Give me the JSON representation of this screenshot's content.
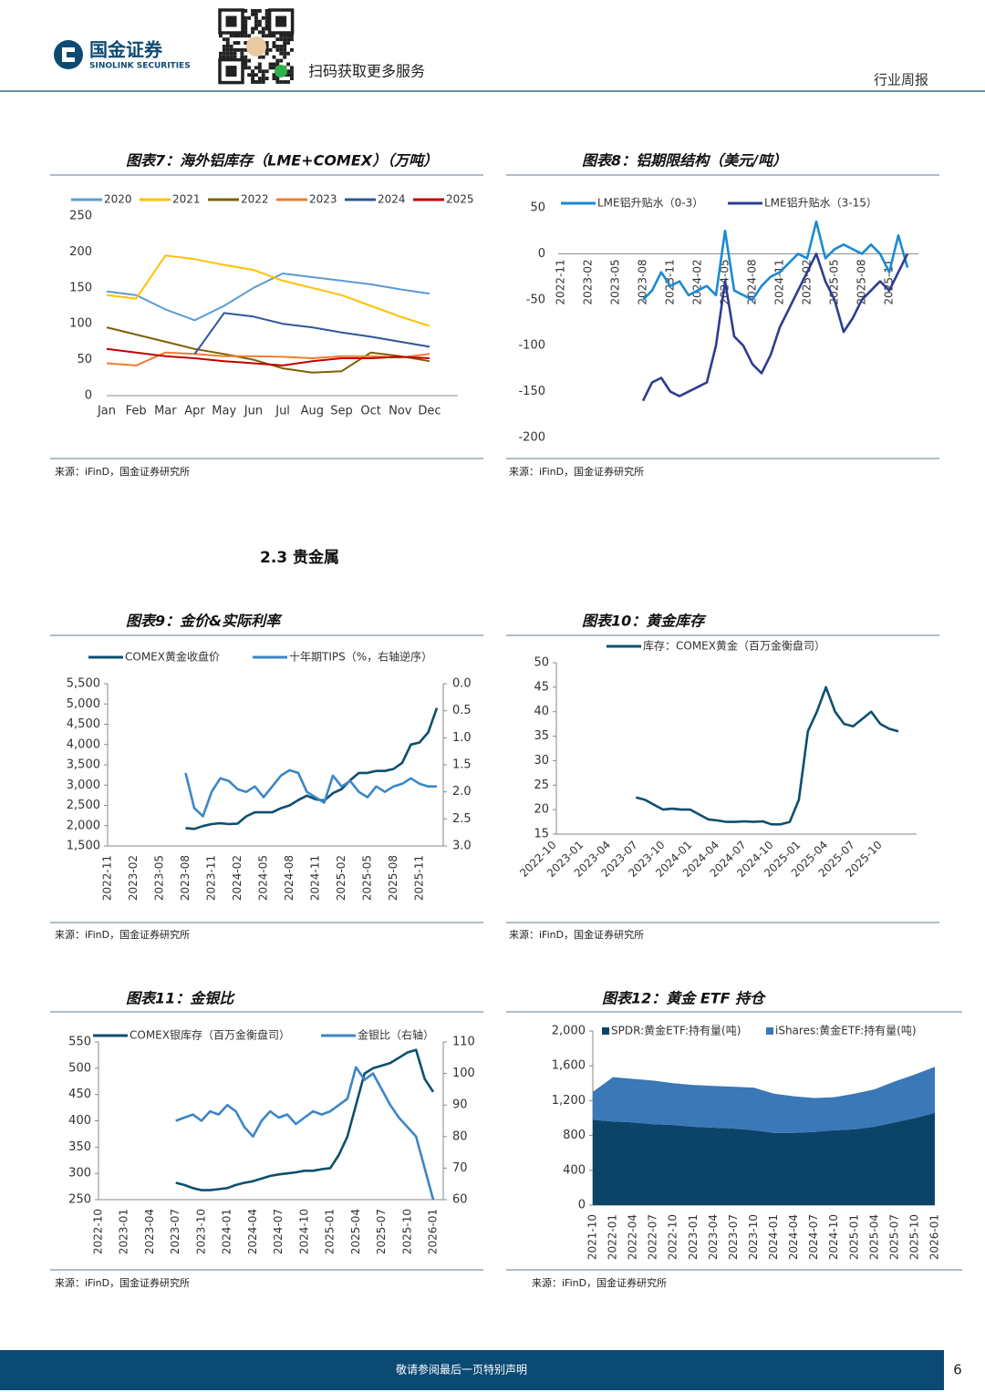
{
  "header": {
    "brand": "国金证券",
    "brand_en": "SINOLINK SECURITIES",
    "qr_caption": "扫码获取更多服务",
    "report_type": "行业周报"
  },
  "section": "2.3 贵金属",
  "footer": {
    "disclaimer": "敬请参阅最后一页特别声明",
    "page": 6
  },
  "chart_data": [
    {
      "type": "line",
      "title": "图表7：海外铝库存（LME+COMEX）（万吨）",
      "source": "来源：iFinD，国金证券研究所",
      "legend": "top",
      "categories": [
        "Jan",
        "Feb",
        "Mar",
        "Apr",
        "May",
        "Jun",
        "Jul",
        "Aug",
        "Sep",
        "Oct",
        "Nov",
        "Dec"
      ],
      "ylim": [
        0,
        250
      ],
      "yticks": [
        0,
        50,
        100,
        150,
        200,
        250
      ],
      "series": [
        {
          "name": "2020",
          "color": "#5b9bd5",
          "values": [
            145,
            140,
            120,
            105,
            125,
            150,
            170,
            165,
            160,
            155,
            148,
            142
          ]
        },
        {
          "name": "2021",
          "color": "#ffc000",
          "values": [
            140,
            135,
            195,
            190,
            182,
            175,
            160,
            150,
            140,
            125,
            110,
            97
          ]
        },
        {
          "name": "2022",
          "color": "#7f6000",
          "values": [
            95,
            85,
            75,
            65,
            58,
            50,
            38,
            32,
            34,
            60,
            55,
            48
          ]
        },
        {
          "name": "2023",
          "color": "#ed7d31",
          "values": [
            45,
            42,
            60,
            58,
            55,
            55,
            54,
            52,
            55,
            55,
            53,
            58
          ]
        },
        {
          "name": "2024",
          "color": "#2f5597",
          "values": [
            null,
            null,
            null,
            58,
            115,
            110,
            100,
            95,
            88,
            82,
            75,
            68
          ]
        },
        {
          "name": "2025",
          "color": "#c00000",
          "values": [
            65,
            60,
            55,
            52,
            48,
            45,
            42,
            48,
            52,
            52,
            54,
            52
          ]
        }
      ]
    },
    {
      "type": "line",
      "title": "图表8：铝期限结构（美元/吨）",
      "source": "来源：iFinD，国金证券研究所",
      "legend": "top",
      "categories": [
        "2022-11",
        null,
        null,
        "2023-02",
        null,
        null,
        "2023-05",
        null,
        null,
        "2023-08",
        null,
        null,
        "2023-11",
        null,
        null,
        "2024-02",
        null,
        null,
        "2024-05",
        null,
        null,
        "2024-08",
        null,
        null,
        "2024-11",
        null,
        null,
        "2025-02",
        null,
        null,
        "2025-05",
        null,
        null,
        "2025-08",
        null,
        null,
        "2025-11",
        null,
        null
      ],
      "ylim": [
        -200,
        50
      ],
      "yticks": [
        -200,
        -150,
        -100,
        -50,
        0,
        50
      ],
      "series": [
        {
          "name": "LME铝升贴水（0-3）",
          "color": "#1a8ad4",
          "values": [
            null,
            null,
            null,
            null,
            null,
            null,
            null,
            null,
            null,
            -50,
            -40,
            -20,
            -35,
            -30,
            -45,
            -40,
            -35,
            -45,
            25,
            -40,
            -45,
            -50,
            -35,
            -25,
            -20,
            -10,
            0,
            -5,
            35,
            -5,
            5,
            10,
            5,
            0,
            10,
            0,
            -20,
            20,
            -15
          ]
        },
        {
          "name": "LME铝升贴水（3-15）",
          "color": "#2e3d8f",
          "values": [
            null,
            null,
            null,
            null,
            null,
            null,
            null,
            null,
            null,
            -160,
            -140,
            -135,
            -150,
            -155,
            -150,
            -145,
            -140,
            -100,
            -30,
            -90,
            -100,
            -120,
            -130,
            -110,
            -80,
            -60,
            -40,
            -20,
            0,
            -30,
            -50,
            -85,
            -70,
            -50,
            -40,
            -30,
            -40,
            -20,
            0
          ]
        }
      ]
    },
    {
      "type": "line",
      "title": "图表9：金价&实际利率",
      "source": "来源：iFinD，国金证券研究所",
      "legend": "top",
      "categories": [
        "2022-11",
        null,
        null,
        "2023-02",
        null,
        null,
        "2023-05",
        null,
        null,
        "2023-08",
        null,
        null,
        "2023-11",
        null,
        null,
        "2024-02",
        null,
        null,
        "2024-05",
        null,
        null,
        "2024-08",
        null,
        null,
        "2024-11",
        null,
        null,
        "2025-02",
        null,
        null,
        "2025-05",
        null,
        null,
        "2025-08",
        null,
        null,
        "2025-11",
        null,
        null
      ],
      "ylim": [
        1500,
        5500
      ],
      "yticks": [
        {
          "value": 1500,
          "label": "1,500"
        },
        {
          "value": 2000,
          "label": "2,000"
        },
        {
          "value": 2500,
          "label": "2,500"
        },
        {
          "value": 3000,
          "label": "3,000"
        },
        {
          "value": 3500,
          "label": "3,500"
        },
        {
          "value": 4000,
          "label": "4,000"
        },
        {
          "value": 4500,
          "label": "4,500"
        },
        {
          "value": 5000,
          "label": "5,000"
        },
        {
          "value": 5500,
          "label": "5,500"
        }
      ],
      "y2lim": [
        0,
        3
      ],
      "y2_inverted": true,
      "y2ticks": [
        {
          "value": 0,
          "label": "0.0"
        },
        0.5,
        {
          "value": 1,
          "label": "1.0"
        },
        1.5,
        {
          "value": 2,
          "label": "2.0"
        },
        2.5,
        {
          "value": 3,
          "label": "3.0"
        }
      ],
      "series": [
        {
          "name": "COMEX黄金收盘价",
          "color": "#0d4f6e",
          "values": [
            null,
            null,
            null,
            null,
            null,
            null,
            null,
            null,
            null,
            1940,
            1920,
            1990,
            2040,
            2060,
            2040,
            2050,
            2230,
            2330,
            2330,
            2330,
            2430,
            2500,
            2630,
            2740,
            2650,
            2620,
            2800,
            2900,
            3120,
            3300,
            3300,
            3350,
            3350,
            3400,
            3550,
            4000,
            4050,
            4300,
            4900
          ]
        },
        {
          "name": "十年期TIPS（%，右轴逆序）",
          "color": "#3c86c6",
          "axis": "y2",
          "values": [
            null,
            null,
            null,
            null,
            null,
            null,
            null,
            null,
            null,
            1.65,
            2.3,
            2.45,
            2.0,
            1.75,
            1.8,
            1.95,
            2.0,
            1.9,
            2.1,
            1.9,
            1.7,
            1.6,
            1.65,
            2.0,
            2.1,
            2.2,
            1.7,
            1.9,
            1.8,
            2.0,
            2.1,
            1.9,
            2.0,
            1.9,
            1.85,
            1.75,
            1.85,
            1.9,
            1.9
          ]
        }
      ]
    },
    {
      "type": "line",
      "title": "图表10：黄金库存",
      "source": "来源：iFinD，国金证券研究所",
      "legend": "top",
      "categories": [
        "2022-10",
        null,
        null,
        "2023-01",
        null,
        null,
        "2023-04",
        null,
        null,
        "2023-07",
        null,
        null,
        "2023-10",
        null,
        null,
        "2024-01",
        null,
        null,
        "2024-04",
        null,
        null,
        "2024-07",
        null,
        null,
        "2024-10",
        null,
        null,
        "2025-01",
        null,
        null,
        "2025-04",
        null,
        null,
        "2025-07",
        null,
        null,
        "2025-10",
        null,
        null
      ],
      "ylim": [
        15,
        50
      ],
      "yticks": [
        15,
        20,
        25,
        30,
        35,
        40,
        45,
        50
      ],
      "series": [
        {
          "name": "库存：COMEX黄金（百万金衡盘司）",
          "color": "#0d4f6e",
          "values": [
            null,
            null,
            null,
            null,
            null,
            null,
            null,
            null,
            null,
            22.5,
            22,
            21,
            20,
            20.2,
            20,
            20,
            19,
            18,
            17.8,
            17.5,
            17.5,
            17.6,
            17.5,
            17.6,
            17,
            17,
            17.5,
            22,
            36,
            40,
            45,
            40,
            37.5,
            37,
            38.5,
            40,
            37.5,
            36.5,
            36
          ]
        }
      ]
    },
    {
      "type": "line",
      "title": "图表11：金银比",
      "source": "来源：iFinD，国金证券研究所",
      "legend": "top",
      "categories": [
        "2022-10",
        null,
        null,
        "2023-01",
        null,
        null,
        "2023-04",
        null,
        null,
        "2023-07",
        null,
        null,
        "2023-10",
        null,
        null,
        "2024-01",
        null,
        null,
        "2024-04",
        null,
        null,
        "2024-07",
        null,
        null,
        "2024-10",
        null,
        null,
        "2025-01",
        null,
        null,
        "2025-04",
        null,
        null,
        "2025-07",
        null,
        null,
        "2025-10",
        null,
        null,
        "2026-01"
      ],
      "ylim": [
        250,
        550
      ],
      "yticks": [
        250,
        300,
        350,
        400,
        450,
        500,
        550
      ],
      "y2lim": [
        60,
        110
      ],
      "y2ticks": [
        60,
        70,
        80,
        90,
        100,
        110
      ],
      "series": [
        {
          "name": "COMEX银库存（百万金衡盘司）",
          "color": "#0d4f6e",
          "values": [
            null,
            null,
            null,
            null,
            null,
            null,
            null,
            null,
            null,
            282,
            278,
            272,
            268,
            268,
            270,
            272,
            278,
            282,
            285,
            290,
            295,
            298,
            300,
            302,
            305,
            305,
            308,
            310,
            335,
            370,
            430,
            490,
            500,
            505,
            510,
            520,
            530,
            535,
            480,
            455
          ]
        },
        {
          "name": "金银比（右轴）",
          "color": "#3c86c6",
          "axis": "y2",
          "values": [
            null,
            null,
            null,
            null,
            null,
            null,
            null,
            null,
            null,
            85,
            86,
            87,
            85,
            88,
            87,
            90,
            88,
            83,
            80,
            85,
            88,
            86,
            87,
            84,
            86,
            88,
            87,
            88,
            90,
            92,
            102,
            98,
            100,
            95,
            90,
            86,
            83,
            80,
            70,
            60
          ]
        }
      ]
    },
    {
      "type": "area",
      "stacked": true,
      "title": "图表12：黄金 ETF 持仓",
      "source": "来源：iFinD，国金证券研究所",
      "legend": "top",
      "categories": [
        "2021-10",
        "2022-01",
        "2022-04",
        "2022-07",
        "2022-10",
        "2023-01",
        "2023-04",
        "2023-07",
        "2023-10",
        "2024-01",
        "2024-04",
        "2024-07",
        "2024-10",
        "2025-01",
        "2025-04",
        "2025-07",
        "2025-10",
        "2026-01"
      ],
      "ylim": [
        0,
        2000
      ],
      "yticks": [
        0,
        400,
        800,
        {
          "value": 1200,
          "label": "1,200"
        },
        {
          "value": 1600,
          "label": "1,600"
        },
        {
          "value": 2000,
          "label": "2,000"
        }
      ],
      "series": [
        {
          "name": "SPDR:黄金ETF:持有量(吨)",
          "color": "#0b4468",
          "values": [
            980,
            960,
            950,
            930,
            920,
            900,
            890,
            880,
            860,
            830,
            830,
            840,
            860,
            870,
            900,
            950,
            1000,
            1060
          ]
        },
        {
          "name": "iShares:黄金ETF:持有量(吨)",
          "color": "#3a78b8",
          "values": [
            320,
            510,
            500,
            500,
            480,
            480,
            480,
            480,
            490,
            450,
            420,
            390,
            380,
            410,
            430,
            470,
            500,
            530
          ]
        }
      ]
    }
  ]
}
